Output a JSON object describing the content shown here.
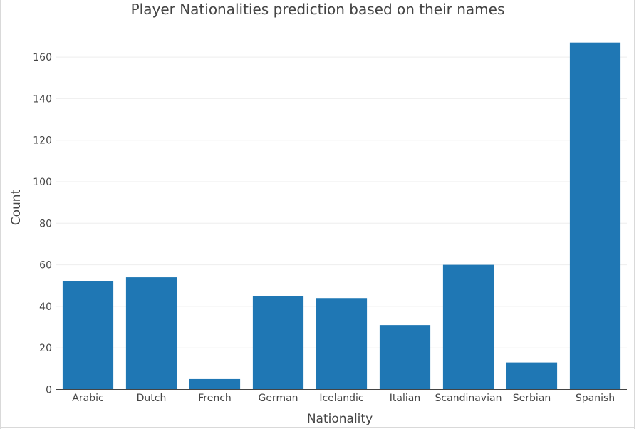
{
  "chart_data": {
    "type": "bar",
    "title": "Player Nationalities prediction based on their names",
    "xlabel": "Nationality",
    "ylabel": "Count",
    "categories": [
      "Arabic",
      "Dutch",
      "French",
      "German",
      "Icelandic",
      "Italian",
      "Scandinavian",
      "Serbian",
      "Spanish"
    ],
    "values": [
      52,
      54,
      5,
      45,
      44,
      31,
      60,
      13,
      167
    ],
    "ylim": [
      0,
      175
    ],
    "yticks": [
      0,
      20,
      40,
      60,
      80,
      100,
      120,
      140,
      160
    ],
    "grid": true,
    "legend": "none",
    "bar_color": "#1f77b4"
  }
}
